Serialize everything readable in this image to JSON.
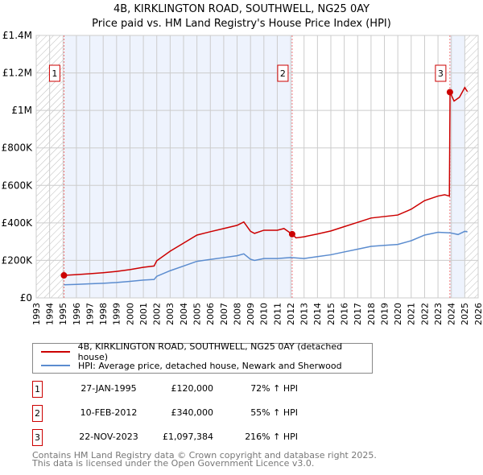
{
  "title": "4B, KIRKLINGTON ROAD, SOUTHWELL, NG25 0AY",
  "subtitle": "Price paid vs. HM Land Registry's House Price Index (HPI)",
  "chart_data": {
    "type": "line",
    "xlim": [
      1993,
      2026
    ],
    "ylim": [
      0,
      1400000
    ],
    "x_ticks": [
      1993,
      1994,
      1995,
      1996,
      1997,
      1998,
      1999,
      2000,
      2001,
      2002,
      2003,
      2004,
      2005,
      2006,
      2007,
      2008,
      2009,
      2010,
      2011,
      2012,
      2013,
      2014,
      2015,
      2016,
      2017,
      2018,
      2019,
      2020,
      2021,
      2022,
      2023,
      2024,
      2025,
      2026
    ],
    "y_ticks": [
      {
        "v": 0,
        "label": "£0"
      },
      {
        "v": 200000,
        "label": "£200K"
      },
      {
        "v": 400000,
        "label": "£400K"
      },
      {
        "v": 600000,
        "label": "£600K"
      },
      {
        "v": 800000,
        "label": "£800K"
      },
      {
        "v": 1000000,
        "label": "£1M"
      },
      {
        "v": 1200000,
        "label": "£1.2M"
      },
      {
        "v": 1400000,
        "label": "£1.4M"
      }
    ],
    "series": [
      {
        "name": "4B, KIRKLINGTON ROAD, SOUTHWELL, NG25 0AY (detached house)",
        "color": "#cc0000",
        "x": [
          1995.07,
          1996,
          1997,
          1998,
          1999,
          2000,
          2001,
          2001.8,
          2002,
          2003,
          2004,
          2005,
          2006,
          2007,
          2008,
          2008.5,
          2009,
          2009.3,
          2010,
          2011,
          2011.5,
          2012.1,
          2012.4,
          2013,
          2014,
          2015,
          2016,
          2017,
          2018,
          2019,
          2020,
          2021,
          2022,
          2023,
          2023.5,
          2023.85,
          2023.9,
          2024.2,
          2024.6,
          2025,
          2025.2
        ],
        "y": [
          120000,
          124000,
          129000,
          134000,
          141000,
          151000,
          163000,
          170000,
          198000,
          249000,
          292000,
          335000,
          353000,
          370000,
          387000,
          405000,
          355000,
          344000,
          361000,
          361000,
          370000,
          340000,
          320000,
          326000,
          341000,
          357000,
          380000,
          403000,
          426000,
          434000,
          442000,
          473000,
          519000,
          543000,
          550000,
          543000,
          1097384,
          1050000,
          1070000,
          1122000,
          1100000
        ]
      },
      {
        "name": "HPI: Average price, detached house, Newark and Sherwood",
        "color": "#5b8ccf",
        "x": [
          1995.07,
          1996,
          1997,
          1998,
          1999,
          2000,
          2001,
          2001.8,
          2002,
          2003,
          2004,
          2005,
          2006,
          2007,
          2008,
          2008.5,
          2009,
          2009.3,
          2010,
          2011,
          2012,
          2013,
          2014,
          2015,
          2016,
          2017,
          2018,
          2019,
          2020,
          2021,
          2022,
          2023,
          2023.9,
          2024.5,
          2025,
          2025.2
        ],
        "y": [
          70000,
          72000,
          75000,
          78000,
          82000,
          88000,
          95000,
          98000,
          115000,
          145000,
          170000,
          195000,
          205000,
          215000,
          225000,
          235000,
          206000,
          200000,
          210000,
          210000,
          215000,
          210000,
          220000,
          230000,
          245000,
          260000,
          275000,
          280000,
          285000,
          305000,
          335000,
          350000,
          347000,
          338000,
          355000,
          352000
        ]
      }
    ],
    "sales": [
      {
        "n": "1",
        "x": 1995.07,
        "date": "27-JAN-1995",
        "price_value": 120000,
        "price": "£120,000",
        "hpi": "72% ↑ HPI"
      },
      {
        "n": "2",
        "x": 2012.11,
        "date": "10-FEB-2012",
        "price_value": 340000,
        "price": "£340,000",
        "hpi": "55% ↑ HPI"
      },
      {
        "n": "3",
        "x": 2023.89,
        "date": "22-NOV-2023",
        "price_value": 1097384,
        "price": "£1,097,384",
        "hpi": "216% ↑ HPI"
      }
    ],
    "shaded_ranges": [
      [
        1995.07,
        2012.11
      ],
      [
        2023.89,
        2025.0
      ]
    ],
    "hatched_ranges": [
      [
        1993,
        1995.07
      ],
      [
        2025.0,
        2026
      ]
    ]
  },
  "legend": {
    "red": "4B, KIRKLINGTON ROAD, SOUTHWELL, NG25 0AY (detached house)",
    "blue": "HPI: Average price, detached house, Newark and Sherwood"
  },
  "footer": {
    "line1": "Contains HM Land Registry data © Crown copyright and database right 2025.",
    "line2": "This data is licensed under the Open Government Licence v3.0."
  }
}
